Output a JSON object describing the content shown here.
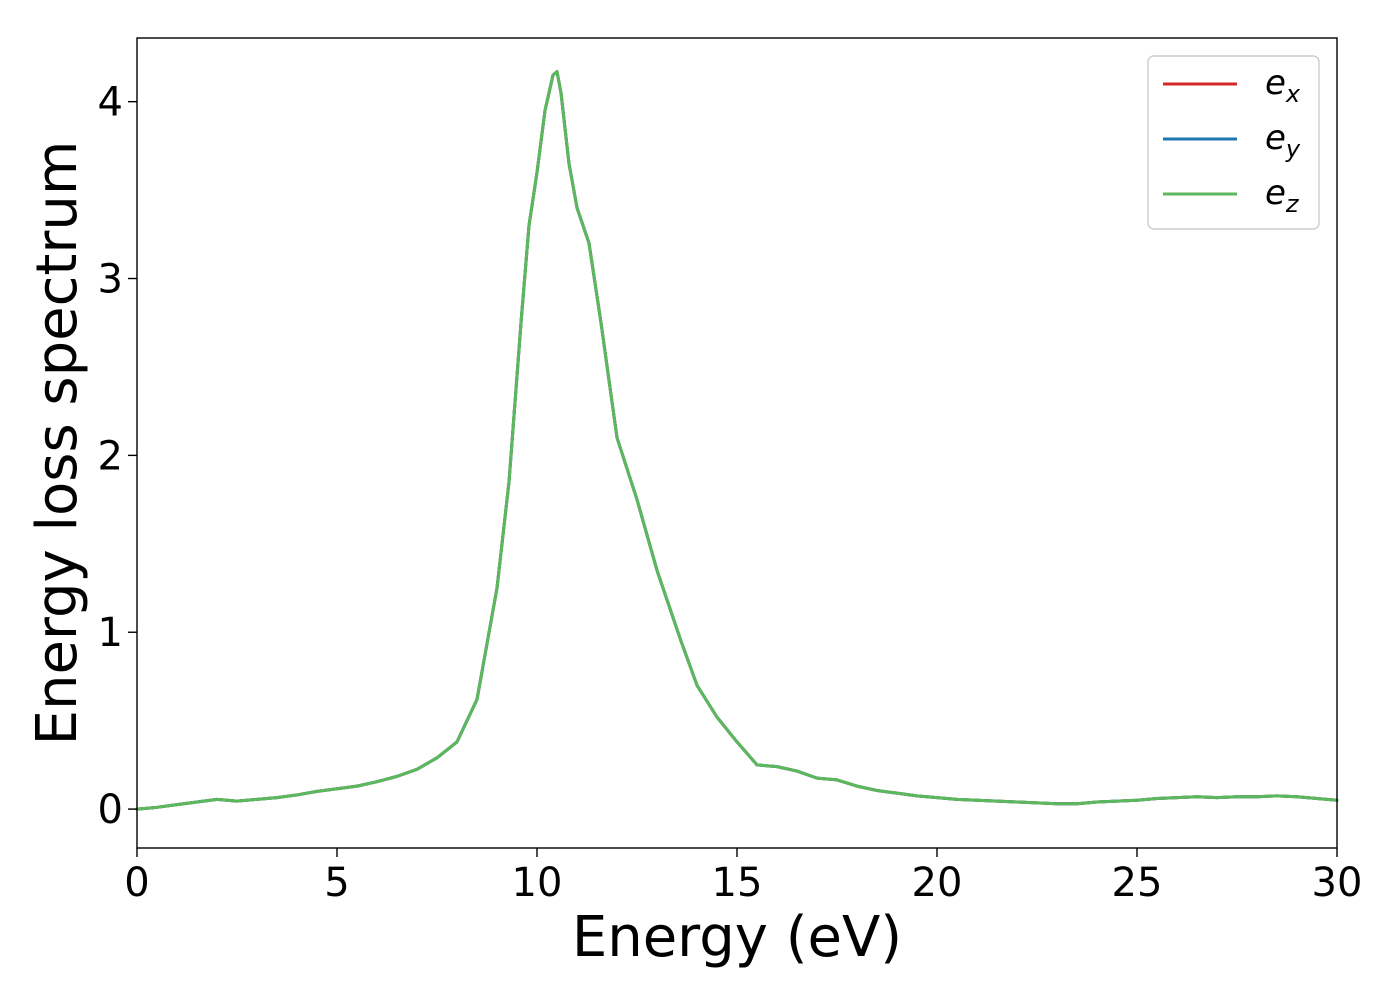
{
  "chart_data": {
    "type": "line",
    "title": "",
    "xlabel": "Energy (eV)",
    "ylabel": "Energy loss spectrum",
    "xlim": [
      0,
      30
    ],
    "ylim": [
      -0.22,
      4.36
    ],
    "xticks": [
      0,
      5,
      10,
      15,
      20,
      25,
      30
    ],
    "yticks": [
      0,
      1,
      2,
      3,
      4
    ],
    "grid": false,
    "legend_position": "top-right",
    "x": [
      0,
      0.5,
      1,
      1.5,
      2,
      2.5,
      3,
      3.5,
      4,
      4.5,
      5,
      5.5,
      6,
      6.5,
      7,
      7.5,
      8,
      8.5,
      9,
      9.3,
      9.6,
      9.8,
      10,
      10.2,
      10.4,
      10.5,
      10.6,
      10.8,
      11,
      11.3,
      11.6,
      12,
      12.5,
      13,
      13.3,
      13.6,
      14,
      14.5,
      15,
      15.5,
      16,
      16.5,
      17,
      17.5,
      18,
      18.5,
      19,
      19.5,
      20,
      20.5,
      21,
      21.5,
      22,
      22.5,
      23,
      23.5,
      24,
      24.5,
      25,
      25.5,
      26,
      26.5,
      27,
      27.5,
      28,
      28.5,
      29,
      29.5,
      30
    ],
    "series": [
      {
        "label_base": "e",
        "label_sub": "x",
        "color": "#d62728",
        "values": [
          0.0,
          0.01,
          0.025,
          0.04,
          0.055,
          0.045,
          0.055,
          0.065,
          0.08,
          0.1,
          0.115,
          0.13,
          0.155,
          0.185,
          0.225,
          0.29,
          0.38,
          0.62,
          1.25,
          1.85,
          2.75,
          3.3,
          3.6,
          3.95,
          4.15,
          4.17,
          4.05,
          3.65,
          3.4,
          3.2,
          2.75,
          2.1,
          1.75,
          1.35,
          1.15,
          0.95,
          0.7,
          0.52,
          0.38,
          0.25,
          0.24,
          0.215,
          0.175,
          0.165,
          0.13,
          0.105,
          0.09,
          0.075,
          0.065,
          0.055,
          0.05,
          0.045,
          0.04,
          0.035,
          0.03,
          0.03,
          0.04,
          0.045,
          0.05,
          0.06,
          0.065,
          0.07,
          0.065,
          0.07,
          0.07,
          0.075,
          0.07,
          0.06,
          0.05
        ]
      },
      {
        "label_base": "e",
        "label_sub": "y",
        "color": "#1f77b4",
        "values": [
          0.0,
          0.01,
          0.025,
          0.04,
          0.055,
          0.045,
          0.055,
          0.065,
          0.08,
          0.1,
          0.115,
          0.13,
          0.155,
          0.185,
          0.225,
          0.29,
          0.38,
          0.62,
          1.25,
          1.85,
          2.75,
          3.3,
          3.6,
          3.95,
          4.15,
          4.17,
          4.05,
          3.65,
          3.4,
          3.2,
          2.75,
          2.1,
          1.75,
          1.35,
          1.15,
          0.95,
          0.7,
          0.52,
          0.38,
          0.25,
          0.24,
          0.215,
          0.175,
          0.165,
          0.13,
          0.105,
          0.09,
          0.075,
          0.065,
          0.055,
          0.05,
          0.045,
          0.04,
          0.035,
          0.03,
          0.03,
          0.04,
          0.045,
          0.05,
          0.06,
          0.065,
          0.07,
          0.065,
          0.07,
          0.07,
          0.075,
          0.07,
          0.06,
          0.05
        ]
      },
      {
        "label_base": "e",
        "label_sub": "z",
        "color": "#5cb85c",
        "values": [
          0.0,
          0.01,
          0.025,
          0.04,
          0.055,
          0.045,
          0.055,
          0.065,
          0.08,
          0.1,
          0.115,
          0.13,
          0.155,
          0.185,
          0.225,
          0.29,
          0.38,
          0.62,
          1.25,
          1.85,
          2.75,
          3.3,
          3.6,
          3.95,
          4.15,
          4.17,
          4.05,
          3.65,
          3.4,
          3.2,
          2.75,
          2.1,
          1.75,
          1.35,
          1.15,
          0.95,
          0.7,
          0.52,
          0.38,
          0.25,
          0.24,
          0.215,
          0.175,
          0.165,
          0.13,
          0.105,
          0.09,
          0.075,
          0.065,
          0.055,
          0.05,
          0.045,
          0.04,
          0.035,
          0.03,
          0.03,
          0.04,
          0.045,
          0.05,
          0.06,
          0.065,
          0.07,
          0.065,
          0.07,
          0.07,
          0.075,
          0.07,
          0.06,
          0.05
        ]
      }
    ]
  }
}
